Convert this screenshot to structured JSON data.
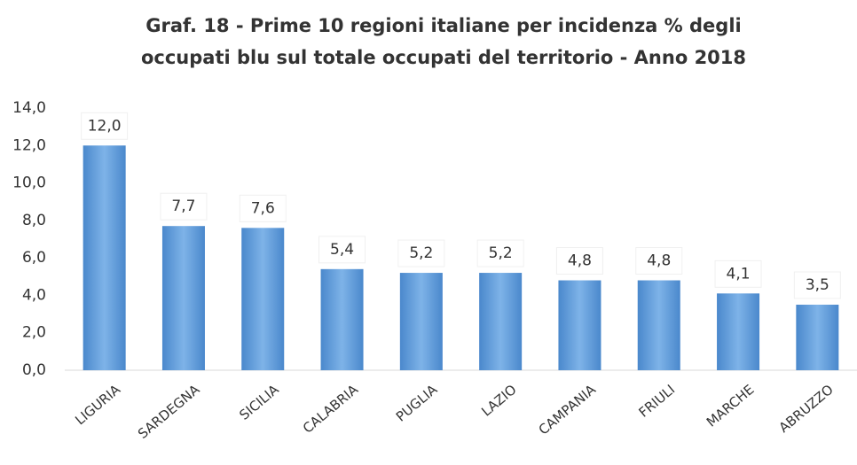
{
  "chart_data": {
    "type": "bar",
    "title": [
      "Graf.  18 - Prime 10 regioni italiane per incidenza % degli",
      "occupati blu sul totale occupati del territorio  - Anno 2018"
    ],
    "categories": [
      "LIGURIA",
      "SARDEGNA",
      "SICILIA",
      "CALABRIA",
      "PUGLIA",
      "LAZIO",
      "CAMPANIA",
      "FRIULI",
      "MARCHE",
      "ABRUZZO"
    ],
    "values": [
      12.0,
      7.7,
      7.6,
      5.4,
      5.2,
      5.2,
      4.8,
      4.8,
      4.1,
      3.5
    ],
    "value_labels": [
      "12,0",
      "7,7",
      "7,6",
      "5,4",
      "5,2",
      "5,2",
      "4,8",
      "4,8",
      "4,1",
      "3,5"
    ],
    "color": "#5b9bd5",
    "ylim": [
      0,
      14
    ],
    "yticks": [
      {
        "value": 0,
        "label": "0,0"
      },
      {
        "value": 2,
        "label": "2,0"
      },
      {
        "value": 4,
        "label": "4,0"
      },
      {
        "value": 6,
        "label": "6,0"
      },
      {
        "value": 8,
        "label": "8,0"
      },
      {
        "value": 10,
        "label": "10,0"
      },
      {
        "value": 12,
        "label": "12,0"
      },
      {
        "value": 14,
        "label": "14,0"
      }
    ],
    "grid": false
  }
}
